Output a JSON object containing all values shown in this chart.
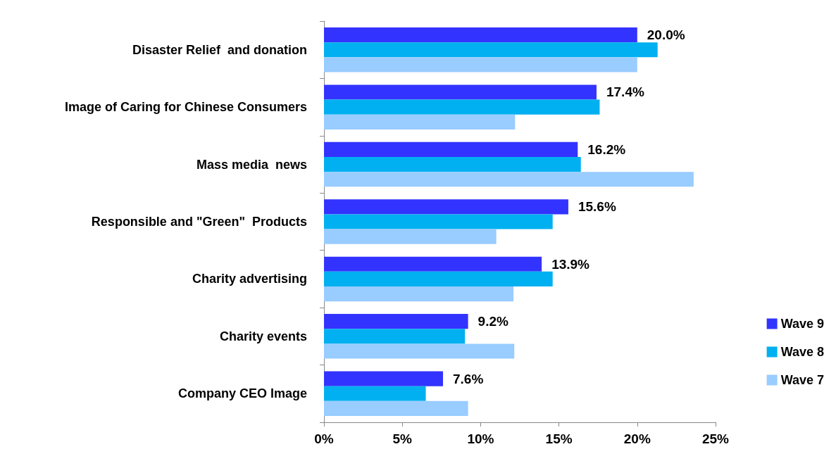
{
  "chart_data": {
    "type": "bar",
    "orientation": "horizontal",
    "categories": [
      "Disaster Relief  and donation",
      "Image of Caring for Chinese Consumers",
      "Mass media  news",
      "Responsible and \"Green\"  Products",
      "Charity advertising",
      "Charity events",
      "Company CEO Image"
    ],
    "series": [
      {
        "name": "Wave 9",
        "color": "#3333ff",
        "values": [
          20.0,
          17.4,
          16.2,
          15.6,
          13.9,
          9.2,
          7.6
        ],
        "value_labels": [
          "20.0%",
          "17.4%",
          "16.2%",
          "15.6%",
          "13.9%",
          "9.2%",
          "7.6%"
        ]
      },
      {
        "name": "Wave 8",
        "color": "#00b0f0",
        "values": [
          21.3,
          17.6,
          16.4,
          14.6,
          14.6,
          9.0,
          6.5
        ]
      },
      {
        "name": "Wave 7",
        "color": "#99ccff",
        "values": [
          20.0,
          12.2,
          23.6,
          11.0,
          12.1,
          12.15,
          9.2
        ]
      }
    ],
    "xlim": [
      0,
      25
    ],
    "xticks": [
      {
        "value": 0,
        "label": "0%"
      },
      {
        "value": 5,
        "label": "5%"
      },
      {
        "value": 10,
        "label": "10%"
      },
      {
        "value": 15,
        "label": "15%"
      },
      {
        "value": 20,
        "label": "20%"
      },
      {
        "value": 25,
        "label": "25%"
      }
    ],
    "grid": false,
    "legend": "right"
  }
}
